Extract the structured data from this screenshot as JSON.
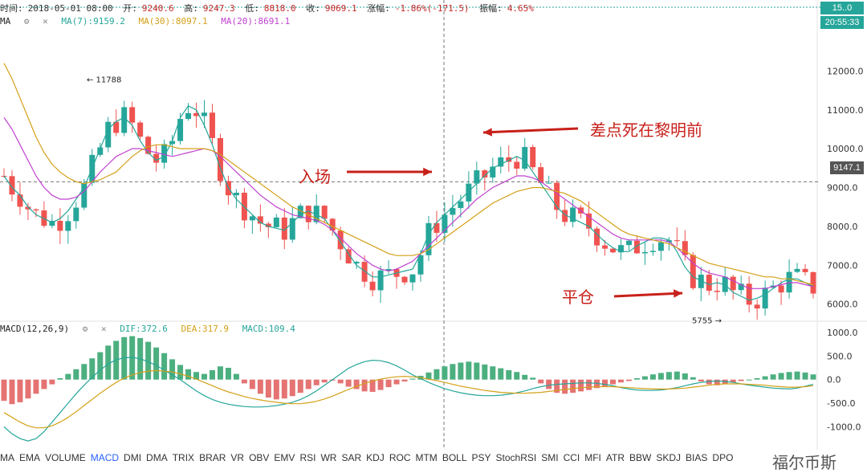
{
  "info": {
    "time_label": "时间:",
    "time": "2018-05-01 08:00",
    "open_label": "开:",
    "open": "9240.6",
    "high_label": "高:",
    "high": "9247.3",
    "low_label": "低:",
    "low": "8818.0",
    "close_label": "收:",
    "close": "9069.1",
    "change_label": "涨幅:",
    "change": "-1.86%(-171.5)",
    "amplitude_label": "振幅:",
    "amplitude": "4.65%"
  },
  "ma_legend": {
    "title": "MA",
    "ma7": "MA(7):9159.2",
    "ma30": "MA(30):8097.1",
    "ma20": "MA(20):8691.1"
  },
  "macd_legend": {
    "title": "MACD(12,26,9)",
    "dif": "DIF:372.6",
    "dea": "DEA:317.9",
    "macd": "MACD:109.4"
  },
  "badges": {
    "top": "15..0",
    "time": "20:55:33",
    "price": "9147.1"
  },
  "annotations": {
    "near_death": "差点死在黎明前",
    "entry": "入场",
    "close_position": "平仓"
  },
  "watermark": "福尔币斯",
  "tabs": [
    "MA",
    "EMA",
    "VOLUME",
    "MACD",
    "DMI",
    "DMA",
    "TRIX",
    "BRAR",
    "VR",
    "OBV",
    "EMV",
    "RSI",
    "WR",
    "SAR",
    "KDJ",
    "ROC",
    "MTM",
    "BOLL",
    "PSY",
    "StochRSI",
    "SMI",
    "CCI",
    "MFI",
    "ATR",
    "BBW",
    "SKDJ",
    "BIAS",
    "DPO"
  ],
  "active_tab": "MACD",
  "colors": {
    "up": "#26a69a",
    "down": "#ef5350",
    "ma7": "#26a69a",
    "ma30": "#d4a017",
    "ma20": "#c040d0",
    "dif": "#26a69a",
    "dea": "#d4a017",
    "annot": "#c8201a"
  },
  "chart_data": [
    {
      "type": "candlestick",
      "title": "",
      "yticks": [
        6000,
        7000,
        8000,
        9000,
        10000,
        11000,
        12000
      ],
      "ytick_labels": [
        "6000.0",
        "7000.0",
        "8000.0",
        "9000.0",
        "10000.0",
        "11000.0",
        "12000.0"
      ],
      "ylim": [
        5600,
        13000
      ],
      "markers": [
        {
          "label": "← 11788",
          "value": 11788
        },
        {
          "label": "5755 →",
          "value": 5755
        }
      ],
      "series": [
        {
          "name": "MA(7)",
          "values": [
            9300,
            9000,
            8800,
            8500,
            8300,
            8200,
            8100,
            8200,
            8400,
            8700,
            9000,
            9500,
            10000,
            10500,
            10700,
            10800,
            10600,
            10200,
            9900,
            9700,
            9800,
            10200,
            10800,
            11100,
            11000,
            10600,
            10100,
            9500,
            9000,
            8700,
            8500,
            8300,
            8100,
            8000,
            7950,
            7900,
            8100,
            8300,
            8400,
            8300,
            8200,
            7900,
            7600,
            7300,
            7000,
            6850,
            6700,
            6700,
            6750,
            6800,
            6850,
            6900,
            7300,
            7800,
            8100,
            8300,
            8500,
            8700,
            8900,
            9100,
            9300,
            9500,
            9600,
            9700,
            9800,
            9700,
            9400,
            9100,
            8800,
            8500,
            8300,
            8200,
            8100,
            8000,
            7800,
            7600,
            7450,
            7350,
            7350,
            7500,
            7600,
            7700,
            7700,
            7650,
            7350,
            6950,
            6700,
            6600,
            6500,
            6550,
            6500,
            6300,
            6200,
            6100,
            6150,
            6250,
            6400,
            6550,
            6650,
            6650,
            6550,
            6450
          ]
        },
        {
          "name": "MA(20)",
          "values": [
            10800,
            10500,
            10100,
            9700,
            9300,
            9000,
            8800,
            8700,
            8700,
            8750,
            8900,
            9150,
            9400,
            9600,
            9800,
            9900,
            10000,
            10000,
            9950,
            9900,
            9850,
            9800,
            9850,
            9900,
            9950,
            10000,
            9950,
            9800,
            9600,
            9400,
            9200,
            9000,
            8800,
            8650,
            8500,
            8400,
            8300,
            8250,
            8200,
            8150,
            8050,
            7900,
            7700,
            7500,
            7300,
            7150,
            7000,
            6900,
            6850,
            6900,
            7000,
            7100,
            7300,
            7500,
            7700,
            7900,
            8100,
            8300,
            8500,
            8700,
            8850,
            9000,
            9100,
            9200,
            9300,
            9300,
            9250,
            9150,
            9000,
            8850,
            8700,
            8550,
            8400,
            8250,
            8100,
            7950,
            7800,
            7700,
            7650,
            7650,
            7650,
            7650,
            7650,
            7600,
            7450,
            7250,
            7050,
            6900,
            6800,
            6750,
            6700,
            6600,
            6500,
            6400,
            6400,
            6400,
            6450,
            6500,
            6550,
            6550,
            6500,
            6450
          ]
        },
        {
          "name": "MA(30)",
          "values": [
            12200,
            11800,
            11300,
            10800,
            10300,
            9900,
            9600,
            9400,
            9250,
            9150,
            9100,
            9150,
            9200,
            9300,
            9400,
            9600,
            9800,
            9950,
            10050,
            10100,
            10100,
            10050,
            10000,
            10000,
            10000,
            10000,
            9950,
            9850,
            9700,
            9550,
            9400,
            9250,
            9100,
            8950,
            8800,
            8650,
            8500,
            8400,
            8300,
            8200,
            8100,
            8000,
            7900,
            7800,
            7700,
            7600,
            7500,
            7400,
            7300,
            7250,
            7250,
            7250,
            7300,
            7400,
            7550,
            7700,
            7850,
            8000,
            8150,
            8300,
            8450,
            8600,
            8700,
            8800,
            8900,
            8950,
            9000,
            9000,
            8950,
            8900,
            8850,
            8750,
            8650,
            8500,
            8350,
            8200,
            8050,
            7900,
            7800,
            7750,
            7700,
            7650,
            7600,
            7550,
            7450,
            7350,
            7250,
            7150,
            7050,
            7000,
            6950,
            6900,
            6850,
            6800,
            6750,
            6700,
            6700,
            6650,
            6650,
            6600,
            6550,
            6500
          ]
        }
      ]
    },
    {
      "type": "bar",
      "title": "",
      "yticks": [
        -1000,
        -500,
        0,
        500,
        1000
      ],
      "ytick_labels": [
        "-1000.0",
        "-500.0",
        "0.0",
        "500.0",
        "1000.0"
      ],
      "ylim": [
        -1400,
        1100
      ],
      "series": [
        {
          "name": "MACD",
          "values": [
            -450,
            -520,
            -480,
            -400,
            -300,
            -200,
            -100,
            30,
            120,
            220,
            330,
            450,
            580,
            720,
            820,
            900,
            920,
            880,
            800,
            680,
            560,
            430,
            310,
            220,
            160,
            120,
            200,
            280,
            250,
            120,
            -80,
            -200,
            -300,
            -380,
            -420,
            -400,
            -350,
            -280,
            -200,
            -120,
            -60,
            -20,
            -80,
            -150,
            -200,
            -250,
            -260,
            -220,
            -160,
            -100,
            -40,
            20,
            80,
            150,
            220,
            280,
            330,
            360,
            380,
            360,
            320,
            280,
            240,
            200,
            160,
            100,
            40,
            -80,
            -200,
            -280,
            -300,
            -280,
            -250,
            -220,
            -180,
            -140,
            -100,
            -60,
            -30,
            30,
            70,
            110,
            140,
            160,
            170,
            130,
            50,
            -40,
            -100,
            -120,
            -90,
            -60,
            -30,
            0,
            30,
            70,
            110,
            140,
            160,
            170,
            150,
            110
          ]
        },
        {
          "name": "DIF",
          "values": [
            -1000,
            -1150,
            -1250,
            -1300,
            -1250,
            -1100,
            -900,
            -700,
            -500,
            -300,
            -120,
            50,
            200,
            330,
            420,
            460,
            470,
            440,
            380,
            300,
            200,
            100,
            0,
            -120,
            -240,
            -340,
            -420,
            -480,
            -520,
            -550,
            -570,
            -580,
            -580,
            -570,
            -550,
            -520,
            -480,
            -420,
            -340,
            -240,
            -120,
            0,
            120,
            240,
            320,
            380,
            410,
            400,
            360,
            290,
            200,
            100,
            20,
            -60,
            -130,
            -190,
            -240,
            -280,
            -310,
            -330,
            -340,
            -340,
            -330,
            -310,
            -280,
            -240,
            -190,
            -150,
            -120,
            -100,
            -90,
            -80,
            -70,
            -70,
            -80,
            -100,
            -130,
            -170,
            -200,
            -220,
            -230,
            -230,
            -220,
            -200,
            -170,
            -130,
            -90,
            -60,
            -40,
            -30,
            -40,
            -60,
            -90,
            -120,
            -140,
            -160,
            -180,
            -190,
            -200,
            -180,
            -140,
            -100
          ]
        },
        {
          "name": "DEA",
          "values": [
            -700,
            -800,
            -900,
            -980,
            -1020,
            -1020,
            -980,
            -900,
            -800,
            -680,
            -550,
            -420,
            -290,
            -170,
            -60,
            30,
            100,
            150,
            180,
            190,
            180,
            160,
            120,
            70,
            10,
            -60,
            -130,
            -200,
            -260,
            -310,
            -360,
            -400,
            -430,
            -460,
            -480,
            -500,
            -510,
            -510,
            -490,
            -460,
            -410,
            -350,
            -280,
            -210,
            -140,
            -80,
            -30,
            10,
            40,
            60,
            70,
            60,
            40,
            10,
            -20,
            -60,
            -100,
            -140,
            -170,
            -200,
            -230,
            -250,
            -270,
            -280,
            -290,
            -290,
            -280,
            -270,
            -250,
            -230,
            -210,
            -190,
            -170,
            -160,
            -150,
            -150,
            -150,
            -160,
            -170,
            -180,
            -190,
            -200,
            -200,
            -200,
            -190,
            -180,
            -160,
            -140,
            -120,
            -100,
            -90,
            -90,
            -90,
            -100,
            -110,
            -120,
            -140,
            -150,
            -160,
            -160,
            -150,
            -130
          ]
        }
      ]
    }
  ]
}
